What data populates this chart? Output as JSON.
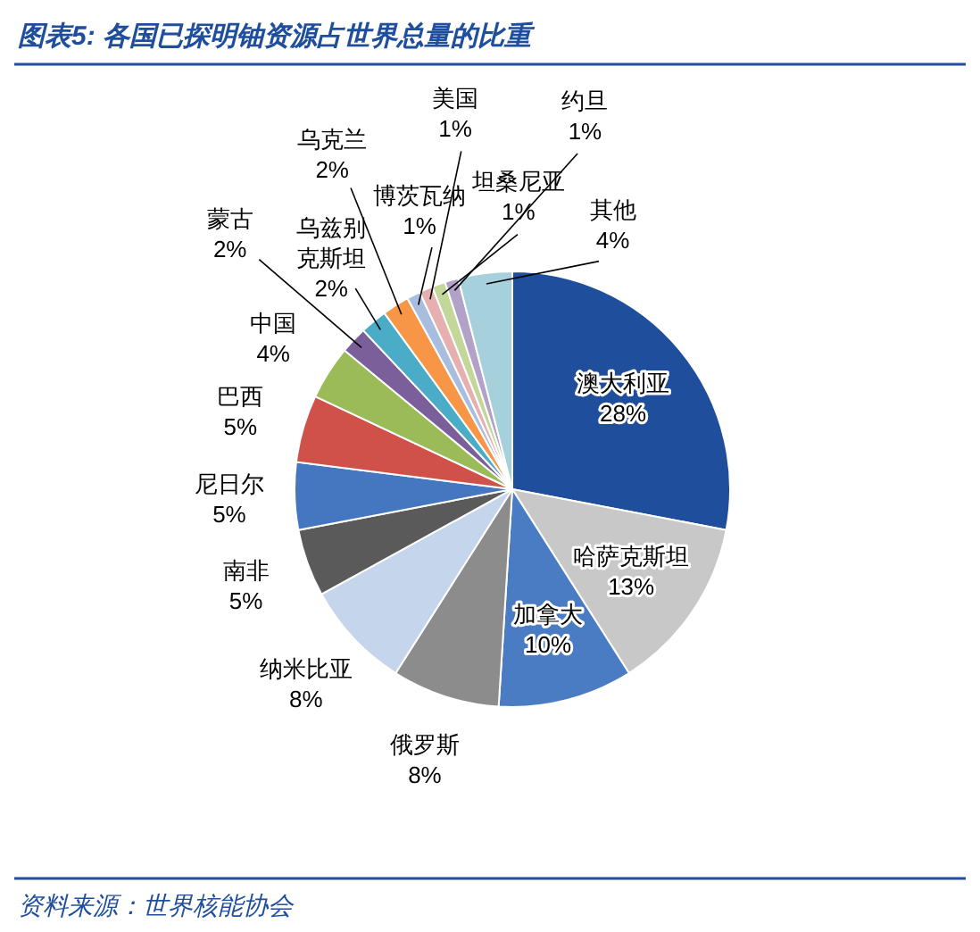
{
  "chart_data": {
    "type": "pie",
    "title": "图表5: 各国已探明铀资源占世界总量的比重",
    "categories": [
      "澳大利亚",
      "哈萨克斯坦",
      "加拿大",
      "俄罗斯",
      "纳米比亚",
      "南非",
      "尼日尔",
      "巴西",
      "中国",
      "蒙古",
      "乌兹别克斯坦",
      "乌克兰",
      "博茨瓦纳",
      "美国",
      "坦桑尼亚",
      "约旦",
      "其他"
    ],
    "values": [
      28,
      13,
      10,
      8,
      8,
      5,
      5,
      5,
      4,
      2,
      2,
      2,
      1,
      1,
      1,
      1,
      4
    ],
    "value_labels": [
      "28%",
      "13%",
      "10%",
      "8%",
      "8%",
      "5%",
      "5%",
      "5%",
      "4%",
      "2%",
      "2%",
      "2%",
      "1%",
      "1%",
      "1%",
      "1%",
      "4%"
    ],
    "colors": [
      "#1f4e9c",
      "#c8c8c8",
      "#4a7cc4",
      "#8c8c8c",
      "#c5d5ec",
      "#5a5a5a",
      "#4577c0",
      "#d0504a",
      "#9bbb59",
      "#7a5f9a",
      "#4aacc6",
      "#f79646",
      "#a9bedf",
      "#e6b0b0",
      "#c4d79b",
      "#b3a2c7",
      "#a5d0dc"
    ],
    "annotations": [
      "资料来源：世界核能协会"
    ]
  }
}
